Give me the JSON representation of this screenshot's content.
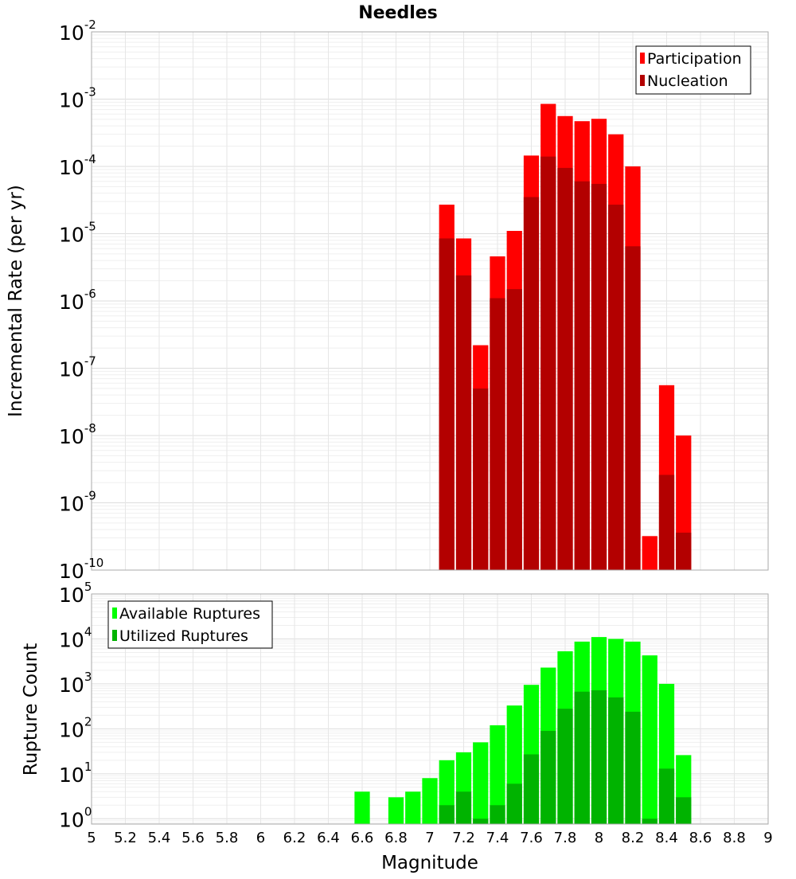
{
  "chart_data": [
    {
      "type": "bar",
      "title": "Needles",
      "xlabel": "",
      "ylabel": "Incremental Rate (per yr)",
      "yscale": "log",
      "ylim": [
        1e-10,
        0.01
      ],
      "xlim": [
        5,
        9
      ],
      "bin_width": 0.1,
      "grid": true,
      "legend_position": "top-right",
      "ytick_labels": [
        {
          "base": "10",
          "exp": "-2"
        },
        {
          "base": "10",
          "exp": "-3"
        },
        {
          "base": "10",
          "exp": "-4"
        },
        {
          "base": "10",
          "exp": "-5"
        },
        {
          "base": "10",
          "exp": "-6"
        },
        {
          "base": "10",
          "exp": "-7"
        },
        {
          "base": "10",
          "exp": "-8"
        },
        {
          "base": "10",
          "exp": "-9"
        },
        {
          "base": "10",
          "exp": "-10"
        }
      ],
      "x": [
        7.1,
        7.2,
        7.3,
        7.4,
        7.5,
        7.6,
        7.7,
        7.8,
        7.9,
        8.0,
        8.1,
        8.2,
        8.3,
        8.4,
        8.5
      ],
      "series": [
        {
          "name": "Participation",
          "color": "#ff0000",
          "values": [
            2.7e-05,
            8.5e-06,
            2.2e-07,
            4.6e-06,
            1.1e-05,
            0.000145,
            0.00085,
            0.00056,
            0.00047,
            0.00051,
            0.0003,
            0.0001,
            3.2e-10,
            5.6e-08,
            1e-08
          ]
        },
        {
          "name": "Nucleation",
          "color": "#b30000",
          "values": [
            8.5e-06,
            2.4e-06,
            5e-08,
            1.1e-06,
            1.5e-06,
            3.5e-05,
            0.00014,
            9.5e-05,
            6e-05,
            5.5e-05,
            2.7e-05,
            6.5e-06,
            null,
            2.6e-09,
            3.6e-10
          ]
        }
      ]
    },
    {
      "type": "bar",
      "title": "",
      "xlabel": "Magnitude",
      "ylabel": "Rupture Count",
      "yscale": "log",
      "ylim": [
        0.76,
        100000
      ],
      "xlim": [
        5,
        9
      ],
      "bin_width": 0.1,
      "grid": true,
      "legend_position": "top-left",
      "xtick_labels": [
        "5",
        "5.2",
        "5.4",
        "5.6",
        "5.8",
        "6",
        "6.2",
        "6.4",
        "6.6",
        "6.8",
        "7",
        "7.2",
        "7.4",
        "7.6",
        "7.8",
        "8",
        "8.2",
        "8.4",
        "8.6",
        "8.8",
        "9"
      ],
      "ytick_labels": [
        {
          "base": "10",
          "exp": "5"
        },
        {
          "base": "10",
          "exp": "4"
        },
        {
          "base": "10",
          "exp": "3"
        },
        {
          "base": "10",
          "exp": "2"
        },
        {
          "base": "10",
          "exp": "1"
        },
        {
          "base": "10",
          "exp": "0"
        }
      ],
      "x": [
        6.6,
        6.7,
        6.8,
        6.9,
        7.0,
        7.1,
        7.2,
        7.3,
        7.4,
        7.5,
        7.6,
        7.7,
        7.8,
        7.9,
        8.0,
        8.1,
        8.2,
        8.3,
        8.4,
        8.5
      ],
      "series": [
        {
          "name": "Available Ruptures",
          "color": "#00ff00",
          "values": [
            4,
            null,
            3,
            4,
            8,
            20,
            30,
            50,
            120,
            330,
            950,
            2300,
            5300,
            8700,
            11000,
            10000,
            8700,
            4300,
            1000,
            26
          ]
        },
        {
          "name": "Utilized Ruptures",
          "color": "#00b300",
          "values": [
            null,
            null,
            null,
            null,
            null,
            2,
            4,
            1,
            2,
            6,
            27,
            90,
            280,
            670,
            720,
            500,
            240,
            1,
            13,
            3
          ]
        }
      ]
    }
  ]
}
